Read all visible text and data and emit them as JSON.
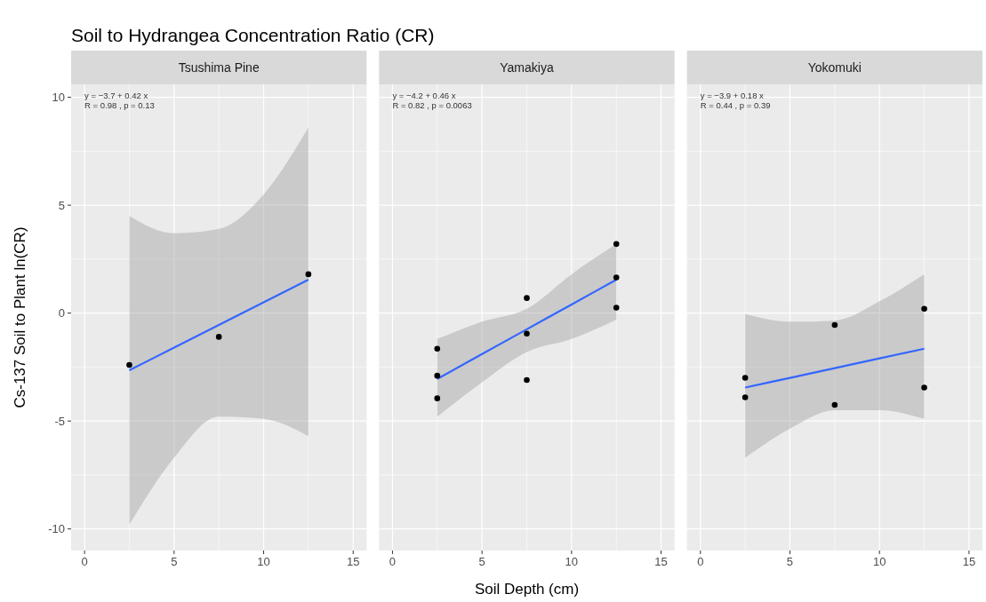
{
  "chart_data": [
    {
      "type": "scatter",
      "title": "Soil to Hydrangea Concentration Ratio (CR)",
      "subtitle": "Tsushima Pine",
      "ylabel": "Cs-137 Soil to Plant ln(CR)",
      "xlim": [
        -0.75,
        15.75
      ],
      "ylim": [
        -11,
        10.6
      ],
      "xticks": [
        0,
        5,
        10,
        15
      ],
      "yticks": [
        -10,
        -5,
        0,
        5,
        10
      ],
      "grid": true,
      "annotations": [
        "y = −3.7 + 0.42 x",
        "R = 0.98 , p = 0.13"
      ],
      "series": [
        {
          "color": "#000000",
          "marker": "circle",
          "x": [
            2.5,
            7.5,
            12.5
          ],
          "values": [
            -2.4,
            -1.1,
            1.8
          ]
        },
        {
          "type": "line",
          "color": "#3366ff",
          "line_style": "solid",
          "x": [
            2.5,
            5,
            7.5,
            10,
            12.5
          ],
          "values": [
            -2.65,
            -1.6,
            -0.55,
            0.5,
            1.55
          ],
          "lower": [
            -9.8,
            -6.7,
            -4.8,
            -4.9,
            -5.7
          ],
          "upper": [
            4.5,
            3.7,
            3.9,
            5.5,
            8.6
          ]
        }
      ]
    },
    {
      "type": "scatter",
      "subtitle": "Yamakiya",
      "xlabel": "Soil Depth (cm)",
      "xlim": [
        -0.75,
        15.75
      ],
      "ylim": [
        -11,
        10.6
      ],
      "xticks": [
        0,
        5,
        10,
        15
      ],
      "yticks": [
        -10,
        -5,
        0,
        5,
        10
      ],
      "grid": true,
      "tick_labels": "x",
      "annotations": [
        "y = −4.2 + 0.46 x",
        "R = 0.82 , p = 0.0063"
      ],
      "series": [
        {
          "color": "#000000",
          "marker": "circle",
          "x": [
            2.5,
            2.5,
            2.5,
            7.5,
            7.5,
            7.5,
            12.5,
            12.5,
            12.5
          ],
          "values": [
            -1.65,
            -2.9,
            -3.95,
            0.7,
            -0.95,
            -3.1,
            3.2,
            1.65,
            0.25
          ]
        },
        {
          "type": "line",
          "color": "#3366ff",
          "line_style": "solid",
          "x": [
            2.5,
            5,
            7.5,
            10,
            12.5
          ],
          "values": [
            -3.05,
            -1.9,
            -0.75,
            0.4,
            1.55
          ],
          "lower": [
            -4.8,
            -3.2,
            -1.8,
            -1.2,
            -0.3
          ],
          "upper": [
            -1.2,
            -0.4,
            0.2,
            1.8,
            3.2
          ]
        }
      ]
    },
    {
      "type": "scatter",
      "subtitle": "Yokomuki",
      "xlim": [
        -0.75,
        15.75
      ],
      "ylim": [
        -11,
        10.6
      ],
      "xticks": [
        0,
        5,
        10,
        15
      ],
      "yticks": [
        -10,
        -5,
        0,
        5,
        10
      ],
      "grid": true,
      "tick_labels": "x",
      "annotations": [
        "y = −3.9 + 0.18 x",
        "R = 0.44 , p = 0.39"
      ],
      "series": [
        {
          "color": "#000000",
          "marker": "circle",
          "x": [
            2.5,
            2.5,
            7.5,
            7.5,
            12.5,
            12.5
          ],
          "values": [
            -3.0,
            -3.9,
            -0.55,
            -4.25,
            0.2,
            -3.45
          ]
        },
        {
          "type": "line",
          "color": "#3366ff",
          "line_style": "solid",
          "x": [
            2.5,
            5,
            7.5,
            10,
            12.5
          ],
          "values": [
            -3.45,
            -3.0,
            -2.55,
            -2.1,
            -1.65
          ],
          "lower": [
            -6.7,
            -5.35,
            -4.5,
            -4.5,
            -4.9
          ],
          "upper": [
            -0.05,
            -0.4,
            -0.35,
            0.55,
            1.8
          ]
        }
      ]
    }
  ]
}
